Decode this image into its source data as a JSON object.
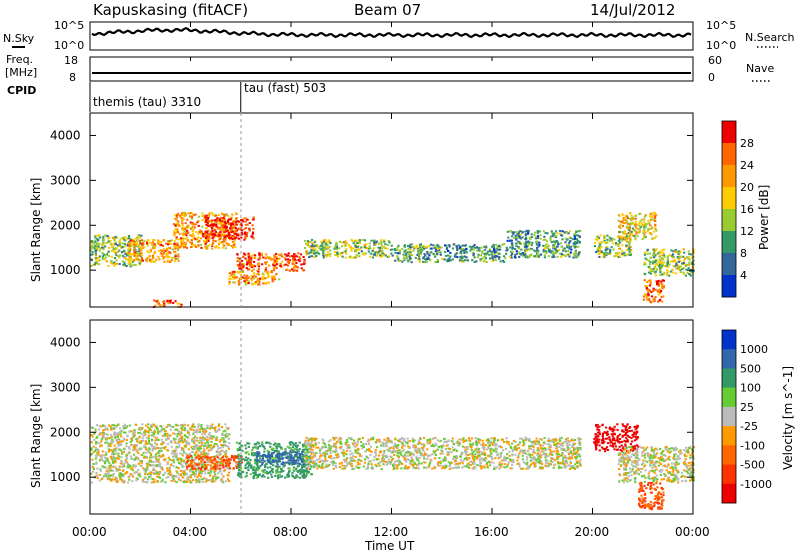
{
  "header": {
    "title": "Kapuskasing (fitACF)",
    "beam": "Beam 07",
    "date": "14/Jul/2012"
  },
  "noise_panel": {
    "left_label": "N.Sky",
    "left_ticks": [
      "10^5",
      "10^0"
    ],
    "right_label": "N.Search",
    "right_ticks": [
      "10^5",
      "10^0"
    ]
  },
  "freq_panel": {
    "left_label_line1": "Freq.",
    "left_label_line2": "[MHz]",
    "left_ticks": [
      "18",
      "8"
    ],
    "right_label": "Nave",
    "right_ticks": [
      "60",
      "0"
    ]
  },
  "cpid_panel": {
    "label": "CPID",
    "segments": [
      {
        "name": "themis (tau) 3310",
        "start_hour": 0
      },
      {
        "name": "tau (fast) 503",
        "start_hour": 6
      }
    ]
  },
  "power_panel": {
    "ylabel": "Slant Range [km]",
    "yticks": [
      "4000",
      "3000",
      "2000",
      "1000"
    ],
    "colorbar_label": "Power [dB]",
    "colorbar_ticks": [
      "28",
      "24",
      "20",
      "16",
      "12",
      "8",
      "4"
    ],
    "colors": [
      "#ee0000",
      "#ff6600",
      "#ff9900",
      "#ffcc00",
      "#99cc33",
      "#339966",
      "#336699",
      "#0033cc"
    ]
  },
  "velocity_panel": {
    "ylabel": "Slant Range [km]",
    "yticks": [
      "4000",
      "3000",
      "2000",
      "1000"
    ],
    "colorbar_label": "Velocity [m s^-1]",
    "colorbar_ticks": [
      "1000",
      "500",
      "100",
      "25",
      "-25",
      "-100",
      "-500",
      "-1000"
    ],
    "colors": [
      "#0033cc",
      "#3366aa",
      "#339966",
      "#66cc33",
      "#bbbbbb",
      "#ff9900",
      "#ff6600",
      "#ff3300",
      "#ee0000"
    ]
  },
  "xaxis": {
    "label": "Time UT",
    "ticks": [
      "00:00",
      "04:00",
      "08:00",
      "12:00",
      "16:00",
      "20:00",
      "00:00"
    ]
  },
  "chart_data": {
    "type": "heatmap",
    "xrange_hours": [
      0,
      24
    ],
    "yrange_km": [
      180,
      4500
    ],
    "power_blobs": [
      {
        "t0": 0.0,
        "t1": 2.0,
        "r0": 1100,
        "r1": 1800,
        "db": 12
      },
      {
        "t0": 1.5,
        "t1": 3.5,
        "r0": 1200,
        "r1": 1700,
        "db": 20
      },
      {
        "t0": 3.3,
        "t1": 5.8,
        "r0": 1500,
        "r1": 2300,
        "db": 20
      },
      {
        "t0": 4.5,
        "t1": 6.5,
        "r0": 1700,
        "r1": 2200,
        "db": 28
      },
      {
        "t0": 5.8,
        "t1": 8.5,
        "r0": 1000,
        "r1": 1400,
        "db": 24
      },
      {
        "t0": 5.5,
        "t1": 7.5,
        "r0": 700,
        "r1": 1000,
        "db": 20
      },
      {
        "t0": 8.5,
        "t1": 12.0,
        "r0": 1300,
        "r1": 1700,
        "db": 12
      },
      {
        "t0": 12.0,
        "t1": 16.5,
        "r0": 1200,
        "r1": 1600,
        "db": 8
      },
      {
        "t0": 16.5,
        "t1": 19.5,
        "r0": 1300,
        "r1": 1900,
        "db": 8
      },
      {
        "t0": 20.0,
        "t1": 21.5,
        "r0": 1300,
        "r1": 1800,
        "db": 12
      },
      {
        "t0": 21.0,
        "t1": 22.5,
        "r0": 1700,
        "r1": 2300,
        "db": 16
      },
      {
        "t0": 22.0,
        "t1": 24.0,
        "r0": 900,
        "r1": 1500,
        "db": 12
      },
      {
        "t0": 22.0,
        "t1": 22.8,
        "r0": 300,
        "r1": 800,
        "db": 24
      },
      {
        "t0": 2.5,
        "t1": 3.6,
        "r0": 200,
        "r1": 350,
        "db": 24
      }
    ],
    "velocity_blobs": [
      {
        "t0": 0.0,
        "t1": 5.5,
        "r0": 900,
        "r1": 2200,
        "v": 0
      },
      {
        "t0": 3.8,
        "t1": 6.0,
        "r0": 1200,
        "r1": 1500,
        "v": -500
      },
      {
        "t0": 5.8,
        "t1": 8.8,
        "r0": 1000,
        "r1": 1800,
        "v": 100
      },
      {
        "t0": 6.5,
        "t1": 8.5,
        "r0": 1300,
        "r1": 1600,
        "v": 500
      },
      {
        "t0": 8.5,
        "t1": 19.5,
        "r0": 1200,
        "r1": 1900,
        "v": 0
      },
      {
        "t0": 20.0,
        "t1": 21.8,
        "r0": 1600,
        "r1": 2200,
        "v": -1000
      },
      {
        "t0": 21.0,
        "t1": 24.0,
        "r0": 900,
        "r1": 1700,
        "v": 0
      },
      {
        "t0": 21.8,
        "t1": 22.8,
        "r0": 300,
        "r1": 900,
        "v": -500
      }
    ]
  }
}
